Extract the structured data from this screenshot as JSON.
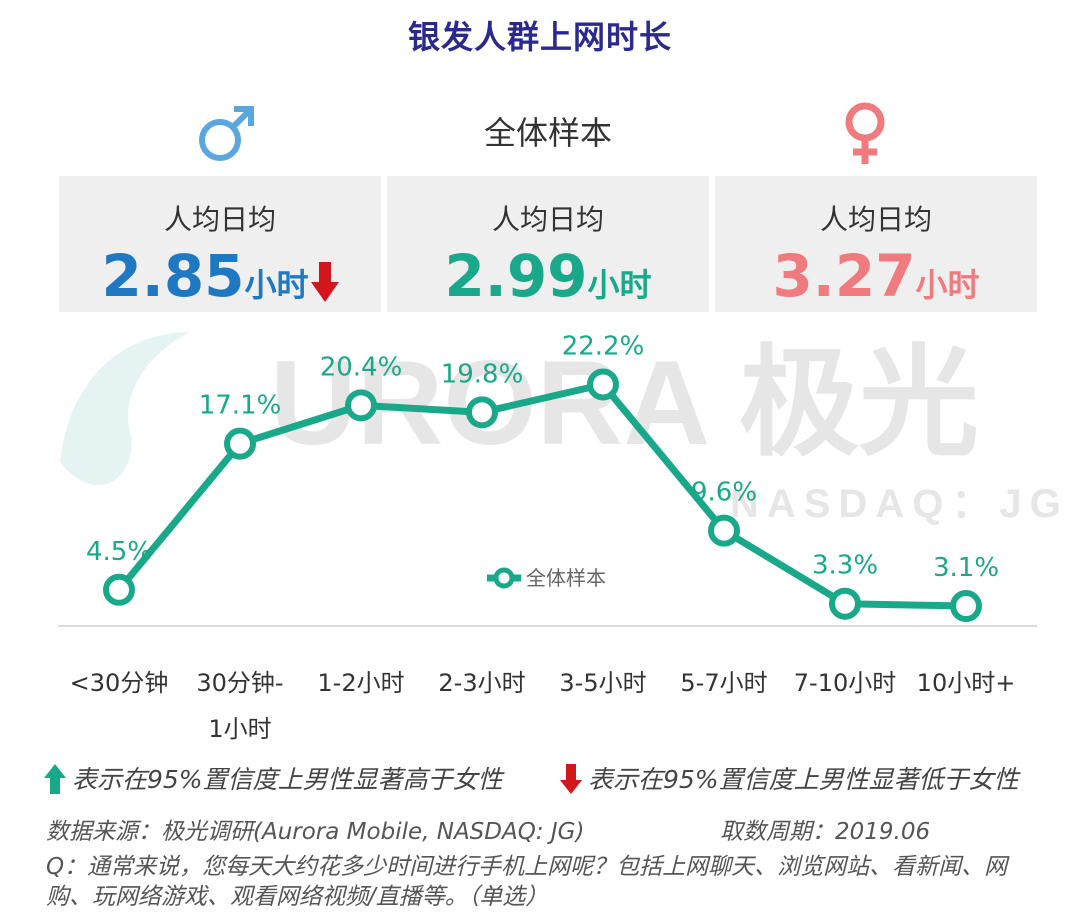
{
  "title": "银发人群上网时长",
  "stats": {
    "male": {
      "label": "人均日均",
      "value": "2.85",
      "unit": "小时",
      "color": "#1f78c2",
      "trend": "down"
    },
    "overall": {
      "title": "全体样本",
      "label": "人均日均",
      "value": "2.99",
      "unit": "小时",
      "color": "#19a88a"
    },
    "female": {
      "label": "人均日均",
      "value": "3.27",
      "unit": "小时",
      "color": "#ef7b7e"
    }
  },
  "icons": {
    "male": "male-symbol-icon",
    "female": "female-symbol-icon",
    "down": "red-down-arrow-icon",
    "up": "green-up-arrow-icon"
  },
  "watermark": {
    "brand": "URORA 极光",
    "sub": "NASDAQ：JG"
  },
  "chart_data": {
    "type": "line",
    "title": "",
    "categories": [
      "<30分钟",
      "30分钟-1小时",
      "1-2小时",
      "2-3小时",
      "3-5小时",
      "5-7小时",
      "7-10小时",
      "10小时+"
    ],
    "category_lines": [
      [
        "<30分钟"
      ],
      [
        "30分钟-",
        "1小时"
      ],
      [
        "1-2小时"
      ],
      [
        "2-3小时"
      ],
      [
        "3-5小时"
      ],
      [
        "5-7小时"
      ],
      [
        "7-10小时"
      ],
      [
        "10小时+"
      ]
    ],
    "series": [
      {
        "name": "全体样本",
        "values": [
          4.5,
          17.1,
          20.4,
          19.8,
          22.2,
          9.6,
          3.3,
          3.1
        ],
        "labels": [
          "4.5%",
          "17.1%",
          "20.4%",
          "19.8%",
          "22.2%",
          "9.6%",
          "3.3%",
          "3.1%"
        ],
        "color": "#19a88a"
      }
    ],
    "ylim": [
      0,
      25
    ],
    "legend_position": "inside-center",
    "grid": false
  },
  "notes": {
    "up": "表示在95%置信度上男性显著高于女性",
    "down": "表示在95%置信度上男性显著低于女性",
    "source": "数据来源：极光调研(Aurora Mobile, NASDAQ: JG)",
    "period": "取数周期：2019.06",
    "question": "Q：通常来说，您每天大约花多少时间进行手机上网呢？包括上网聊天、浏览网站、看新闻、网购、玩网络游戏、观看网络视频/直播等。（单选）"
  }
}
